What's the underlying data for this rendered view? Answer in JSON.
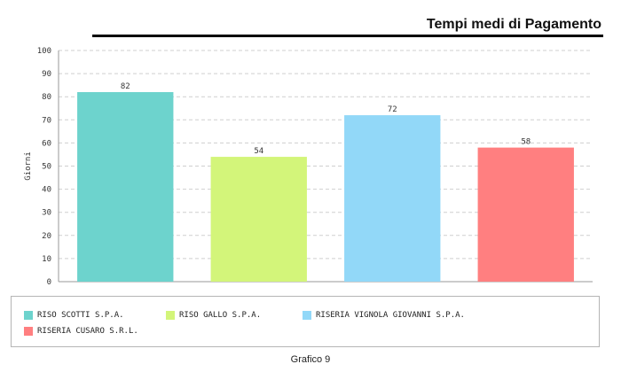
{
  "header": {
    "title": "Tempi medi di Pagamento"
  },
  "caption": "Grafico 9",
  "chart_data": {
    "type": "bar",
    "title": "Tempi medi di Pagamento",
    "ylabel": "Giorni",
    "xlabel": "",
    "ylim": [
      0,
      100
    ],
    "yticks": [
      "0",
      "10",
      "20",
      "30",
      "40",
      "50",
      "60",
      "70",
      "80",
      "90",
      "100"
    ],
    "grid": true,
    "legend_position": "bottom",
    "categories": [
      "RISO SCOTTI S.P.A.",
      "RISO GALLO S.P.A.",
      "RISERIA VIGNOLA GIOVANNI S.P.A.",
      "RISERIA CUSARO S.R.L."
    ],
    "values": [
      82,
      54,
      72,
      58
    ],
    "colors": [
      "#6dd3cd",
      "#d3f57a",
      "#92d8f8",
      "#ff7f80"
    ],
    "data_labels": [
      "82",
      "54",
      "72",
      "58"
    ]
  }
}
